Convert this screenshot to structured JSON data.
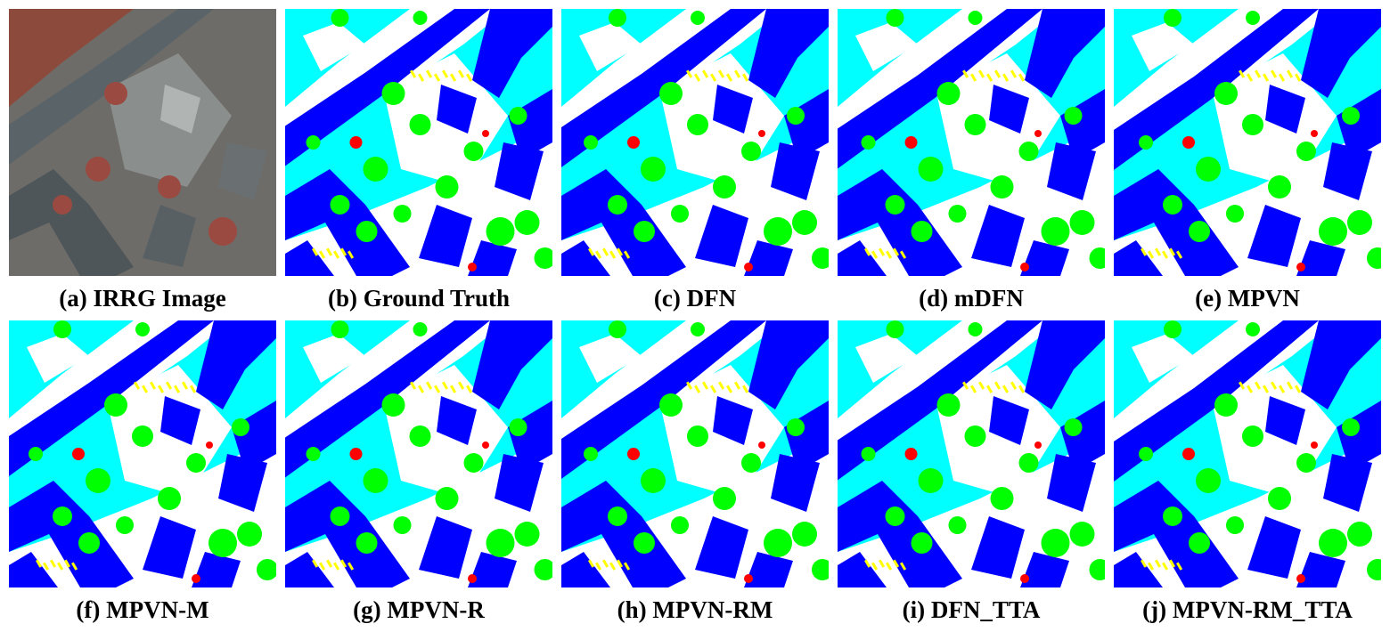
{
  "figure": {
    "panels": [
      {
        "caption": "(a) IRRG Image",
        "kind": "irrg"
      },
      {
        "caption": "(b) Ground Truth",
        "kind": "seg"
      },
      {
        "caption": "(c) DFN",
        "kind": "seg"
      },
      {
        "caption": "(d) mDFN",
        "kind": "seg"
      },
      {
        "caption": "(e) MPVN",
        "kind": "seg"
      },
      {
        "caption": "(f) MPVN-M",
        "kind": "seg"
      },
      {
        "caption": "(g) MPVN-R",
        "kind": "seg"
      },
      {
        "caption": "(h) MPVN-RM",
        "kind": "seg"
      },
      {
        "caption": "(i) DFN_TTA",
        "kind": "seg"
      },
      {
        "caption": "(j) MPVN-RM_TTA",
        "kind": "seg"
      }
    ]
  },
  "colors": {
    "impervious": "#ffffff",
    "building": "#0000ff",
    "low_vegetation": "#00ffff",
    "tree": "#00ff00",
    "car": "#ffff00",
    "clutter": "#ff0000"
  }
}
